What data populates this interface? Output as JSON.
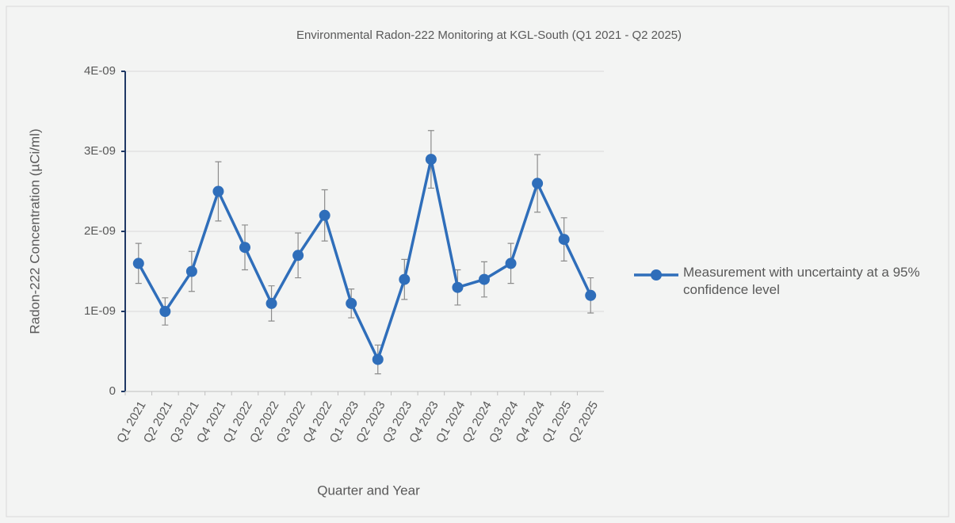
{
  "chart_data": {
    "type": "line",
    "title": "Environmental Radon-222 Monitoring at KGL-South (Q1 2021 - Q2 2025)",
    "x_label": "Quarter and Year",
    "y_label": "Radon-222 Concentration (µCi/ml)",
    "categories": [
      "Q1 2021",
      "Q2 2021",
      "Q3 2021",
      "Q4 2021",
      "Q1 2022",
      "Q2 2022",
      "Q3 2022",
      "Q4 2022",
      "Q1 2023",
      "Q2 2023",
      "Q3 2023",
      "Q4 2023",
      "Q1 2024",
      "Q2 2024",
      "Q3 2024",
      "Q4 2024",
      "Q1 2025",
      "Q2 2025"
    ],
    "series": [
      {
        "name": "Measurement with uncertainty at a 95% confidence level",
        "color": "#2f6eba",
        "values": [
          1.6e-09,
          1e-09,
          1.5e-09,
          2.5e-09,
          1.8e-09,
          1.1e-09,
          1.7e-09,
          2.2e-09,
          1.1e-09,
          4e-10,
          1.4e-09,
          2.9e-09,
          1.3e-09,
          1.4e-09,
          1.6e-09,
          2.6e-09,
          1.9e-09,
          1.2e-09
        ],
        "errors": [
          2.5e-10,
          1.7e-10,
          2.5e-10,
          3.7e-10,
          2.8e-10,
          2.2e-10,
          2.8e-10,
          3.2e-10,
          1.8e-10,
          1.8e-10,
          2.5e-10,
          3.6e-10,
          2.2e-10,
          2.2e-10,
          2.5e-10,
          3.6e-10,
          2.7e-10,
          2.2e-10
        ]
      }
    ],
    "ylim": [
      0,
      4e-09
    ],
    "yticks": [
      0,
      {
        "value": 1e-09,
        "label": "1E-09"
      },
      {
        "value": 2e-09,
        "label": "2E-09"
      },
      {
        "value": 3e-09,
        "label": "3E-09"
      },
      {
        "value": 4e-09,
        "label": "4E-09"
      }
    ],
    "grid": true,
    "legend": "right"
  }
}
